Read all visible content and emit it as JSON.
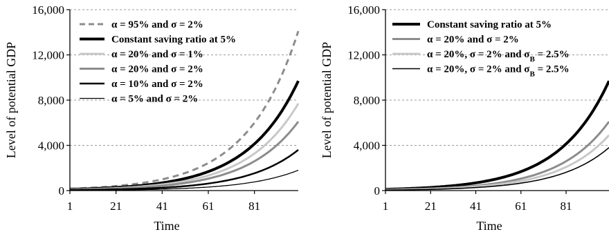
{
  "chart_data": [
    {
      "type": "line",
      "xlabel": "Time",
      "ylabel": "Level of potential GDP",
      "xlim": [
        1,
        100
      ],
      "ylim": [
        0,
        16000
      ],
      "x_ticks": [
        "1",
        "21",
        "41",
        "61",
        "81"
      ],
      "y_ticks": [
        "0",
        "4,000",
        "8,000",
        "12,000",
        "16,000"
      ],
      "grid": "horizontal dashed",
      "legend_position": "top-left",
      "series": [
        {
          "name": "α = 95% and σ = 2%",
          "color": "#8c8c8c",
          "style": "dashed",
          "width": 3,
          "end_value": 14100
        },
        {
          "name": "Constant saving ratio at 5%",
          "color": "#000000",
          "style": "solid",
          "width": 4,
          "end_value": 9700
        },
        {
          "name": "α = 20% and σ = 1%",
          "color": "#c8c8c8",
          "style": "solid",
          "width": 3,
          "end_value": 7700
        },
        {
          "name": "α = 20% and σ = 2%",
          "color": "#8c8c8c",
          "style": "solid",
          "width": 3,
          "end_value": 6100
        },
        {
          "name": "α = 10% and σ = 2%",
          "color": "#000000",
          "style": "solid",
          "width": 2.5,
          "end_value": 3600
        },
        {
          "name": "α = 5% and σ = 2%",
          "color": "#000000",
          "style": "solid",
          "width": 1.3,
          "end_value": 1800
        }
      ]
    },
    {
      "type": "line",
      "xlabel": "Time",
      "ylabel": "Level of potential GDP",
      "xlim": [
        1,
        100
      ],
      "ylim": [
        0,
        16000
      ],
      "x_ticks": [
        "1",
        "21",
        "41",
        "61",
        "81"
      ],
      "y_ticks": [
        "0",
        "4,000",
        "8,000",
        "12,000",
        "16,000"
      ],
      "grid": "horizontal dashed",
      "legend_position": "top-left",
      "series": [
        {
          "name": "Constant saving ratio at 5%",
          "color": "#000000",
          "style": "solid",
          "width": 4,
          "end_value": 9700
        },
        {
          "name": "α = 20% and σ = 2%",
          "color": "#8c8c8c",
          "style": "solid",
          "width": 3,
          "end_value": 6100
        },
        {
          "name": "α = 20%, σ = 2% and σB = 2.5%",
          "name_parts": {
            "main": "α = 20%, σ = 2% and σ",
            "sub": "B",
            "tail": " = 2.5%"
          },
          "color": "#c8c8c8",
          "style": "solid",
          "width": 3,
          "end_value": 4900
        },
        {
          "name": "α = 20%, σ = 2% and σB = 2.5%",
          "name_parts": {
            "main": "α = 20%, σ = 2% and σ",
            "sub": "B",
            "tail": " = 2.5%"
          },
          "color": "#000000",
          "style": "solid",
          "width": 1.6,
          "end_value": 3800
        }
      ]
    }
  ]
}
